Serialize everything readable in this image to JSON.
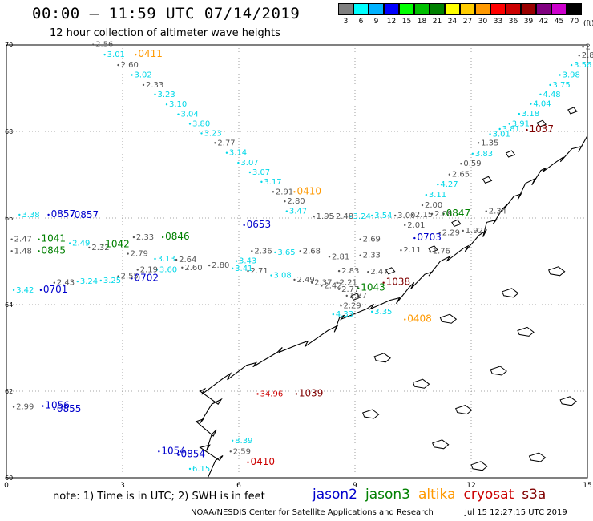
{
  "header": {
    "title": "00:00 – 11:59 UTC 07/14/2019",
    "subtitle": "12 hour collection of altimeter wave heights"
  },
  "legend": {
    "unit": "(ft)",
    "items": [
      {
        "label": "3",
        "color": "#7f7f7f"
      },
      {
        "label": "6",
        "color": "#00ffff"
      },
      {
        "label": "9",
        "color": "#00b2ff"
      },
      {
        "label": "12",
        "color": "#0000ff"
      },
      {
        "label": "15",
        "color": "#00ff00"
      },
      {
        "label": "18",
        "color": "#00c000"
      },
      {
        "label": "21",
        "color": "#008000"
      },
      {
        "label": "24",
        "color": "#ffff00"
      },
      {
        "label": "27",
        "color": "#ffcc00"
      },
      {
        "label": "30",
        "color": "#ff9900"
      },
      {
        "label": "33",
        "color": "#ff0000"
      },
      {
        "label": "36",
        "color": "#cc0000"
      },
      {
        "label": "39",
        "color": "#990000"
      },
      {
        "label": "42",
        "color": "#800080"
      },
      {
        "label": "45",
        "color": "#cc00cc"
      },
      {
        "label": "70",
        "color": "#000000"
      }
    ]
  },
  "axes": {
    "x_ticks": [
      "0",
      "3",
      "6",
      "9",
      "12",
      "15"
    ],
    "y_ticks": [
      "70",
      "68",
      "66",
      "64",
      "62",
      "60"
    ],
    "lon_range": [
      0,
      15
    ],
    "lat_range": [
      60,
      70
    ]
  },
  "colors": {
    "gray": "#555555",
    "cyan": "#00d8e8",
    "jason2": "#0000cc",
    "jason3": "#008000",
    "altika": "#ff9900",
    "cryosat": "#cc0000",
    "s3a": "#800000"
  },
  "labels": [
    {
      "t": "2.56",
      "lon": 2.3,
      "lat": 69.95,
      "c": "gray"
    },
    {
      "t": "3.01",
      "lon": 2.6,
      "lat": 69.72,
      "c": "cyan"
    },
    {
      "t": "0411",
      "lon": 3.4,
      "lat": 69.72,
      "c": "altika"
    },
    {
      "t": "2.60",
      "lon": 2.95,
      "lat": 69.48,
      "c": "gray"
    },
    {
      "t": "3.02",
      "lon": 3.3,
      "lat": 69.25,
      "c": "cyan"
    },
    {
      "t": "2.33",
      "lon": 3.6,
      "lat": 69.02,
      "c": "gray"
    },
    {
      "t": "3.23",
      "lon": 3.9,
      "lat": 68.8,
      "c": "cyan"
    },
    {
      "t": "3.10",
      "lon": 4.2,
      "lat": 68.57,
      "c": "cyan"
    },
    {
      "t": "3.04",
      "lon": 4.5,
      "lat": 68.34,
      "c": "cyan"
    },
    {
      "t": "3.80",
      "lon": 4.8,
      "lat": 68.12,
      "c": "cyan"
    },
    {
      "t": "3.23",
      "lon": 5.1,
      "lat": 67.9,
      "c": "cyan"
    },
    {
      "t": "2.77",
      "lon": 5.45,
      "lat": 67.68,
      "c": "gray"
    },
    {
      "t": "3.14",
      "lon": 5.75,
      "lat": 67.45,
      "c": "cyan"
    },
    {
      "t": "3.07",
      "lon": 6.05,
      "lat": 67.22,
      "c": "cyan"
    },
    {
      "t": "3.07",
      "lon": 6.35,
      "lat": 67.0,
      "c": "cyan"
    },
    {
      "t": "3.17",
      "lon": 6.65,
      "lat": 66.78,
      "c": "cyan"
    },
    {
      "t": "2.91",
      "lon": 6.95,
      "lat": 66.55,
      "c": "gray"
    },
    {
      "t": "0410",
      "lon": 7.5,
      "lat": 66.55,
      "c": "altika"
    },
    {
      "t": "2.80",
      "lon": 7.25,
      "lat": 66.33,
      "c": "gray"
    },
    {
      "t": "3.47",
      "lon": 7.3,
      "lat": 66.1,
      "c": "cyan"
    },
    {
      "t": "1.95",
      "lon": 8.0,
      "lat": 65.98,
      "c": "gray"
    },
    {
      "t": "2.48",
      "lon": 8.5,
      "lat": 65.98,
      "c": "gray"
    },
    {
      "t": "3.24",
      "lon": 8.95,
      "lat": 65.98,
      "c": "cyan"
    },
    {
      "t": "3.54",
      "lon": 9.5,
      "lat": 66.0,
      "c": "cyan"
    },
    {
      "t": "3.00",
      "lon": 10.1,
      "lat": 66.0,
      "c": "gray"
    },
    {
      "t": "2.15",
      "lon": 10.55,
      "lat": 66.02,
      "c": "gray"
    },
    {
      "t": "2.08",
      "lon": 11.05,
      "lat": 66.04,
      "c": "gray"
    },
    {
      "t": "0847",
      "lon": 11.35,
      "lat": 66.04,
      "c": "jason3"
    },
    {
      "t": "2.34",
      "lon": 12.45,
      "lat": 66.1,
      "c": "gray"
    },
    {
      "t": "2.00",
      "lon": 10.8,
      "lat": 66.24,
      "c": "gray"
    },
    {
      "t": "3.11",
      "lon": 10.9,
      "lat": 66.48,
      "c": "cyan"
    },
    {
      "t": "4.27",
      "lon": 11.2,
      "lat": 66.72,
      "c": "cyan"
    },
    {
      "t": "2.65",
      "lon": 11.5,
      "lat": 66.95,
      "c": "gray"
    },
    {
      "t": "0.59",
      "lon": 11.8,
      "lat": 67.2,
      "c": "gray"
    },
    {
      "t": "3.83",
      "lon": 12.1,
      "lat": 67.43,
      "c": "cyan"
    },
    {
      "t": "1.35",
      "lon": 12.25,
      "lat": 67.68,
      "c": "gray"
    },
    {
      "t": "3.01",
      "lon": 12.55,
      "lat": 67.88,
      "c": "cyan"
    },
    {
      "t": "3.81",
      "lon": 12.8,
      "lat": 68.0,
      "c": "cyan"
    },
    {
      "t": "1037",
      "lon": 13.5,
      "lat": 67.98,
      "c": "s3a"
    },
    {
      "t": "3.91",
      "lon": 13.05,
      "lat": 68.12,
      "c": "cyan"
    },
    {
      "t": "3.18",
      "lon": 13.3,
      "lat": 68.35,
      "c": "cyan"
    },
    {
      "t": "4.04",
      "lon": 13.6,
      "lat": 68.58,
      "c": "cyan"
    },
    {
      "t": "4.48",
      "lon": 13.85,
      "lat": 68.8,
      "c": "cyan"
    },
    {
      "t": "3.75",
      "lon": 14.1,
      "lat": 69.02,
      "c": "cyan"
    },
    {
      "t": "3.98",
      "lon": 14.35,
      "lat": 69.25,
      "c": "cyan"
    },
    {
      "t": "3.56",
      "lon": 14.65,
      "lat": 69.48,
      "c": "cyan"
    },
    {
      "t": "2.89",
      "lon": 14.85,
      "lat": 69.7,
      "c": "gray"
    },
    {
      "t": "2",
      "lon": 14.95,
      "lat": 69.9,
      "c": "gray"
    },
    {
      "t": "3.38",
      "lon": 0.4,
      "lat": 66.02,
      "c": "cyan"
    },
    {
      "t": "0857",
      "lon": 1.15,
      "lat": 66.02,
      "c": "jason2"
    },
    {
      "t": "0857",
      "lon": 1.75,
      "lat": 66.0,
      "c": "jason2"
    },
    {
      "t": "2.47",
      "lon": 0.2,
      "lat": 65.45,
      "c": "gray"
    },
    {
      "t": "1041",
      "lon": 0.9,
      "lat": 65.45,
      "c": "jason3"
    },
    {
      "t": "1.48",
      "lon": 0.2,
      "lat": 65.18,
      "c": "gray"
    },
    {
      "t": "0845",
      "lon": 0.9,
      "lat": 65.18,
      "c": "jason3"
    },
    {
      "t": "2.49",
      "lon": 1.7,
      "lat": 65.36,
      "c": "cyan"
    },
    {
      "t": "2.32",
      "lon": 2.2,
      "lat": 65.26,
      "c": "gray"
    },
    {
      "t": "1042",
      "lon": 2.55,
      "lat": 65.32,
      "c": "jason3"
    },
    {
      "t": "2.33",
      "lon": 3.35,
      "lat": 65.5,
      "c": "gray"
    },
    {
      "t": "0846",
      "lon": 4.1,
      "lat": 65.5,
      "c": "jason3"
    },
    {
      "t": "2.79",
      "lon": 3.2,
      "lat": 65.12,
      "c": "gray"
    },
    {
      "t": "3.13",
      "lon": 3.9,
      "lat": 65.0,
      "c": "cyan"
    },
    {
      "t": "2.64",
      "lon": 4.45,
      "lat": 64.98,
      "c": "gray"
    },
    {
      "t": "2.60",
      "lon": 4.6,
      "lat": 64.8,
      "c": "gray"
    },
    {
      "t": "2.80",
      "lon": 5.3,
      "lat": 64.85,
      "c": "gray"
    },
    {
      "t": "3.43",
      "lon": 6.0,
      "lat": 64.95,
      "c": "cyan"
    },
    {
      "t": "3.41",
      "lon": 5.9,
      "lat": 64.78,
      "c": "cyan"
    },
    {
      "t": "2.36",
      "lon": 6.4,
      "lat": 65.18,
      "c": "gray"
    },
    {
      "t": "2.71",
      "lon": 6.3,
      "lat": 64.72,
      "c": "gray"
    },
    {
      "t": "3.65",
      "lon": 7.0,
      "lat": 65.15,
      "c": "cyan"
    },
    {
      "t": "3.08",
      "lon": 6.9,
      "lat": 64.62,
      "c": "cyan"
    },
    {
      "t": "2.68",
      "lon": 7.65,
      "lat": 65.18,
      "c": "gray"
    },
    {
      "t": "0653",
      "lon": 6.2,
      "lat": 65.78,
      "c": "jason2"
    },
    {
      "t": "2.49",
      "lon": 7.5,
      "lat": 64.52,
      "c": "gray"
    },
    {
      "t": "2.37",
      "lon": 7.95,
      "lat": 64.45,
      "c": "gray"
    },
    {
      "t": "2.42",
      "lon": 8.2,
      "lat": 64.38,
      "c": "gray"
    },
    {
      "t": "2.81",
      "lon": 8.4,
      "lat": 65.05,
      "c": "gray"
    },
    {
      "t": "2.83",
      "lon": 8.65,
      "lat": 64.72,
      "c": "gray"
    },
    {
      "t": "2.47",
      "lon": 9.4,
      "lat": 64.7,
      "c": "gray"
    },
    {
      "t": "2.69",
      "lon": 9.2,
      "lat": 65.45,
      "c": "gray"
    },
    {
      "t": "2.33",
      "lon": 9.2,
      "lat": 65.08,
      "c": "gray"
    },
    {
      "t": "0703",
      "lon": 10.6,
      "lat": 65.48,
      "c": "jason2"
    },
    {
      "t": "2.29",
      "lon": 11.25,
      "lat": 65.6,
      "c": "gray"
    },
    {
      "t": "1.92",
      "lon": 11.85,
      "lat": 65.65,
      "c": "gray"
    },
    {
      "t": "2.01",
      "lon": 10.35,
      "lat": 65.78,
      "c": "gray"
    },
    {
      "t": "1.76",
      "lon": 11.0,
      "lat": 65.18,
      "c": "gray"
    },
    {
      "t": "2.11",
      "lon": 10.25,
      "lat": 65.2,
      "c": "gray"
    },
    {
      "t": "1038",
      "lon": 9.8,
      "lat": 64.45,
      "c": "s3a"
    },
    {
      "t": "1043",
      "lon": 9.15,
      "lat": 64.32,
      "c": "jason3"
    },
    {
      "t": "2.21",
      "lon": 8.6,
      "lat": 64.45,
      "c": "gray"
    },
    {
      "t": "2.77",
      "lon": 8.65,
      "lat": 64.3,
      "c": "gray"
    },
    {
      "t": "1.87",
      "lon": 8.85,
      "lat": 64.15,
      "c": "gray"
    },
    {
      "t": "2.29",
      "lon": 8.7,
      "lat": 63.92,
      "c": "gray"
    },
    {
      "t": "4.33",
      "lon": 8.5,
      "lat": 63.72,
      "c": "cyan"
    },
    {
      "t": "3.35",
      "lon": 9.5,
      "lat": 63.78,
      "c": "cyan"
    },
    {
      "t": "0408",
      "lon": 10.35,
      "lat": 63.6,
      "c": "altika"
    },
    {
      "t": "3.42",
      "lon": 0.25,
      "lat": 64.28,
      "c": "cyan"
    },
    {
      "t": "0701",
      "lon": 0.95,
      "lat": 64.28,
      "c": "jason2"
    },
    {
      "t": "2.43",
      "lon": 1.3,
      "lat": 64.45,
      "c": "gray"
    },
    {
      "t": "3.24",
      "lon": 1.9,
      "lat": 64.48,
      "c": "cyan"
    },
    {
      "t": "3.25",
      "lon": 2.5,
      "lat": 64.5,
      "c": "cyan"
    },
    {
      "t": "2.55",
      "lon": 2.95,
      "lat": 64.6,
      "c": "gray"
    },
    {
      "t": "0702",
      "lon": 3.3,
      "lat": 64.55,
      "c": "jason2"
    },
    {
      "t": "3.60",
      "lon": 3.95,
      "lat": 64.75,
      "c": "cyan"
    },
    {
      "t": "2.19",
      "lon": 3.45,
      "lat": 64.75,
      "c": "gray"
    },
    {
      "t": "34.96",
      "lon": 6.55,
      "lat": 61.88,
      "c": "cryosat"
    },
    {
      "t": "1039",
      "lon": 7.55,
      "lat": 61.88,
      "c": "s3a"
    },
    {
      "t": "2.99",
      "lon": 0.25,
      "lat": 61.58,
      "c": "gray"
    },
    {
      "t": "1056",
      "lon": 1.0,
      "lat": 61.6,
      "c": "jason2"
    },
    {
      "t": "0855",
      "lon": 1.3,
      "lat": 61.52,
      "c": "jason2"
    },
    {
      "t": "1054",
      "lon": 4.0,
      "lat": 60.55,
      "c": "jason2"
    },
    {
      "t": "0854",
      "lon": 4.5,
      "lat": 60.47,
      "c": "jason2"
    },
    {
      "t": "8.39",
      "lon": 5.9,
      "lat": 60.8,
      "c": "cyan"
    },
    {
      "t": "2.59",
      "lon": 5.85,
      "lat": 60.55,
      "c": "gray"
    },
    {
      "t": "6.15",
      "lon": 4.8,
      "lat": 60.15,
      "c": "cyan"
    },
    {
      "t": "0410",
      "lon": 6.3,
      "lat": 60.3,
      "c": "cryosat"
    }
  ],
  "note": "note: 1) Time is in UTC; 2) SWH is in feet",
  "satellites": [
    {
      "name": "jason2",
      "color": "#0000cc"
    },
    {
      "name": "jason3",
      "color": "#008000"
    },
    {
      "name": "altika",
      "color": "#ff9900"
    },
    {
      "name": "cryosat",
      "color": "#cc0000"
    },
    {
      "name": "s3a",
      "color": "#800000"
    }
  ],
  "footer": {
    "credit": "NOAA/NESDIS Center for Satellite Applications and Research",
    "timestamp": "Jul 15 12:27:15 UTC 2019"
  }
}
